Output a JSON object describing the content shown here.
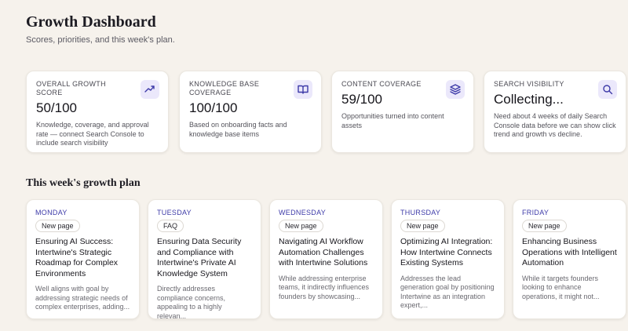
{
  "header": {
    "title": "Growth Dashboard",
    "subtitle": "Scores, priorities, and this week's plan."
  },
  "scores": [
    {
      "label": "OVERALL GROWTH SCORE",
      "value": "50/100",
      "description": "Knowledge, coverage, and approval rate — connect Search Console to include search visibility"
    },
    {
      "label": "KNOWLEDGE BASE COVERAGE",
      "value": "100/100",
      "description": "Based on onboarding facts and knowledge base items"
    },
    {
      "label": "CONTENT COVERAGE",
      "value": "59/100",
      "description": "Opportunities turned into content assets"
    },
    {
      "label": "SEARCH VISIBILITY",
      "value": "Collecting...",
      "description": "Need about 4 weeks of daily Search Console data before we can show click trend and growth vs decline."
    }
  ],
  "plan": {
    "title": "This week's growth plan",
    "items": [
      {
        "day": "MONDAY",
        "tag": "New page",
        "title": "Ensuring AI Success: Intertwine's Strategic Roadmap for Complex Environments",
        "description": "Well aligns with goal by addressing strategic needs of complex enterprises, adding..."
      },
      {
        "day": "TUESDAY",
        "tag": "FAQ",
        "title": "Ensuring Data Security and Compliance with Intertwine's Private AI Knowledge System",
        "description": "Directly addresses compliance concerns, appealing to a highly relevan..."
      },
      {
        "day": "WEDNESDAY",
        "tag": "New page",
        "title": "Navigating AI Workflow Automation Challenges with Intertwine Solutions",
        "description": "While addressing enterprise teams, it indirectly influences founders by showcasing..."
      },
      {
        "day": "THURSDAY",
        "tag": "New page",
        "title": "Optimizing AI Integration: How Intertwine Connects Existing Systems",
        "description": "Addresses the lead generation goal by positioning Intertwine as an integration expert,..."
      },
      {
        "day": "FRIDAY",
        "tag": "New page",
        "title": "Enhancing Business Operations with Intelligent Automation",
        "description": "While it targets founders looking to enhance operations, it might not..."
      }
    ]
  }
}
